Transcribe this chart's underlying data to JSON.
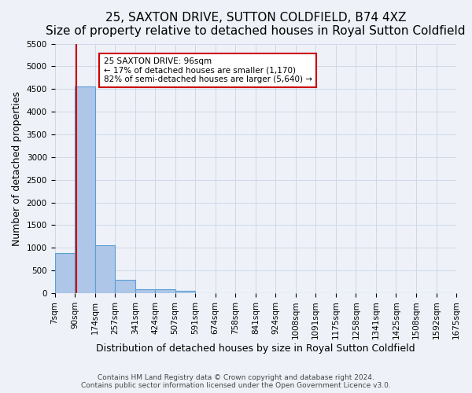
{
  "title": "25, SAXTON DRIVE, SUTTON COLDFIELD, B74 4XZ",
  "subtitle": "Size of property relative to detached houses in Royal Sutton Coldfield",
  "xlabel": "Distribution of detached houses by size in Royal Sutton Coldfield",
  "ylabel": "Number of detached properties",
  "footnote1": "Contains HM Land Registry data © Crown copyright and database right 2024.",
  "footnote2": "Contains public sector information licensed under the Open Government Licence v3.0.",
  "bar_edges": [
    7,
    90,
    174,
    257,
    341,
    424,
    507,
    591,
    674,
    758,
    841,
    924,
    1008,
    1091,
    1175,
    1258,
    1341,
    1425,
    1508,
    1592,
    1675
  ],
  "bar_values": [
    880,
    4560,
    1060,
    290,
    80,
    80,
    50,
    0,
    0,
    0,
    0,
    0,
    0,
    0,
    0,
    0,
    0,
    0,
    0,
    0
  ],
  "bar_color": "#aec6e8",
  "bar_edge_color": "#5a9fd4",
  "tick_labels": [
    "7sqm",
    "90sqm",
    "174sqm",
    "257sqm",
    "341sqm",
    "424sqm",
    "507sqm",
    "591sqm",
    "674sqm",
    "758sqm",
    "841sqm",
    "924sqm",
    "1008sqm",
    "1091sqm",
    "1175sqm",
    "1258sqm",
    "1341sqm",
    "1425sqm",
    "1508sqm",
    "1592sqm",
    "1675sqm"
  ],
  "property_size": 96,
  "vline_color": "#cc0000",
  "annotation_line1": "25 SAXTON DRIVE: 96sqm",
  "annotation_line2": "← 17% of detached houses are smaller (1,170)",
  "annotation_line3": "82% of semi-detached houses are larger (5,640) →",
  "annotation_box_color": "#ffffff",
  "annotation_box_edge": "#cc0000",
  "ylim": [
    0,
    5500
  ],
  "yticks": [
    0,
    500,
    1000,
    1500,
    2000,
    2500,
    3000,
    3500,
    4000,
    4500,
    5000,
    5500
  ],
  "grid_color": "#d0d8e8",
  "bg_color": "#eef2f8",
  "title_fontsize": 11,
  "subtitle_fontsize": 10,
  "axis_fontsize": 9,
  "tick_fontsize": 7.5
}
